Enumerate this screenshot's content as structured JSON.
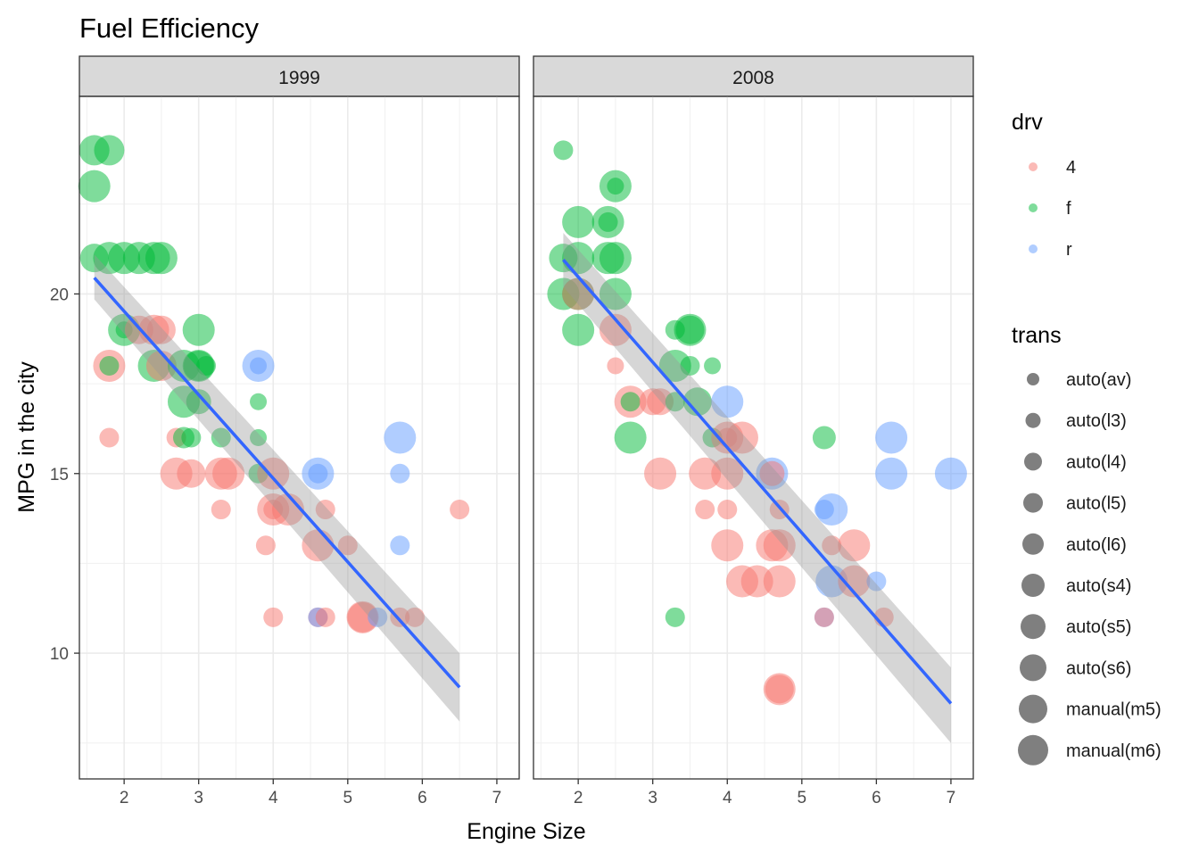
{
  "chart_data": {
    "type": "scatter",
    "title": "Fuel Efficiency",
    "xlabel": "Engine Size",
    "ylabel": "MPG in the city",
    "xlim": [
      1.4,
      7.3
    ],
    "ylim": [
      6.5,
      25.5
    ],
    "x_ticks": [
      2,
      3,
      4,
      5,
      6,
      7
    ],
    "y_ticks": [
      10,
      15,
      20
    ],
    "grid": true,
    "legend_position": "right",
    "facets": [
      "1999",
      "2008"
    ],
    "colors": {
      "4": "#F8766D",
      "f": "#00BA38",
      "r": "#619CFF",
      "smooth": "#3366FF",
      "ribbon": "#999999",
      "strip": "#D9D9D9"
    },
    "legend_color": {
      "title": "drv",
      "labels": [
        "4",
        "f",
        "r"
      ]
    },
    "legend_size": {
      "title": "trans",
      "labels": [
        "auto(av)",
        "auto(l3)",
        "auto(l4)",
        "auto(l5)",
        "auto(l6)",
        "auto(s4)",
        "auto(s5)",
        "auto(s6)",
        "manual(m5)",
        "manual(m6)"
      ]
    },
    "panels": [
      {
        "facet": "1999",
        "smooth": {
          "x": [
            1.6,
            6.5
          ],
          "y": [
            20.45,
            9.05
          ],
          "se_lo": [
            19.85,
            8.1
          ],
          "se_hi": [
            21.1,
            10.0
          ]
        },
        "points": [
          [
            1.8,
            24,
            "f",
            "manual(m5)"
          ],
          [
            1.6,
            24,
            "f",
            "manual(m5)"
          ],
          [
            1.6,
            23,
            "f",
            "manual(m6)"
          ],
          [
            1.6,
            21,
            "f",
            "auto(s6)"
          ],
          [
            1.8,
            21,
            "f",
            "manual(m6)"
          ],
          [
            2.0,
            21,
            "f",
            "manual(m6)"
          ],
          [
            2.2,
            21,
            "f",
            "manual(m6)"
          ],
          [
            2.4,
            21,
            "f",
            "manual(m6)"
          ],
          [
            2.5,
            21,
            "f",
            "manual(m6)"
          ],
          [
            2.0,
            19,
            "f",
            "manual(m6)"
          ],
          [
            2.0,
            19,
            "f",
            "auto(l3)"
          ],
          [
            2.2,
            19,
            "4",
            "auto(s6)"
          ],
          [
            2.4,
            19,
            "4",
            "manual(m5)"
          ],
          [
            2.5,
            19,
            "4",
            "auto(s6)"
          ],
          [
            3.0,
            19,
            "f",
            "manual(m6)"
          ],
          [
            1.8,
            18,
            "4",
            "manual(m6)"
          ],
          [
            1.8,
            18,
            "f",
            "auto(l4)"
          ],
          [
            2.4,
            18,
            "f",
            "manual(m6)"
          ],
          [
            2.5,
            18,
            "4",
            "manual(m5)"
          ],
          [
            2.8,
            18,
            "f",
            "manual(m6)"
          ],
          [
            3.0,
            18,
            "f",
            "manual(m6)"
          ],
          [
            3.0,
            18,
            "f",
            "manual(m5)"
          ],
          [
            3.1,
            18,
            "f",
            "auto(l4)"
          ],
          [
            3.8,
            18,
            "r",
            "manual(m6)"
          ],
          [
            3.8,
            18,
            "r",
            "auto(l3)"
          ],
          [
            2.8,
            17,
            "f",
            "manual(m6)"
          ],
          [
            3.0,
            17,
            "f",
            "auto(s4)"
          ],
          [
            3.8,
            17,
            "f",
            "auto(l3)"
          ],
          [
            1.8,
            16,
            "4",
            "auto(l4)"
          ],
          [
            2.7,
            16,
            "4",
            "auto(l4)"
          ],
          [
            2.8,
            16,
            "f",
            "auto(l5)"
          ],
          [
            2.9,
            16,
            "f",
            "auto(l4)"
          ],
          [
            3.3,
            16,
            "f",
            "auto(l4)"
          ],
          [
            3.8,
            16,
            "f",
            "auto(l3)"
          ],
          [
            5.7,
            16,
            "r",
            "manual(m6)"
          ],
          [
            2.7,
            15,
            "4",
            "manual(m6)"
          ],
          [
            2.9,
            15,
            "4",
            "auto(s6)"
          ],
          [
            3.3,
            15,
            "4",
            "manual(m6)"
          ],
          [
            3.4,
            15,
            "4",
            "manual(m6)"
          ],
          [
            3.8,
            15,
            "f",
            "auto(l4)"
          ],
          [
            4.0,
            15,
            "4",
            "manual(m6)"
          ],
          [
            4.6,
            15,
            "r",
            "manual(m6)"
          ],
          [
            4.6,
            15,
            "r",
            "auto(l4)"
          ],
          [
            5.7,
            15,
            "r",
            "auto(l4)"
          ],
          [
            3.3,
            14,
            "4",
            "auto(l4)"
          ],
          [
            4.0,
            14,
            "4",
            "manual(m6)"
          ],
          [
            4.0,
            14,
            "4",
            "auto(l4)"
          ],
          [
            4.2,
            14,
            "4",
            "manual(m6)"
          ],
          [
            4.7,
            14,
            "4",
            "auto(l4)"
          ],
          [
            6.5,
            14,
            "4",
            "auto(l4)"
          ],
          [
            3.9,
            13,
            "4",
            "auto(l4)"
          ],
          [
            4.6,
            13,
            "4",
            "manual(m6)"
          ],
          [
            5.0,
            13,
            "4",
            "auto(l4)"
          ],
          [
            5.7,
            13,
            "r",
            "auto(l4)"
          ],
          [
            4.0,
            11,
            "4",
            "auto(l4)"
          ],
          [
            4.6,
            11,
            "4",
            "auto(l4)"
          ],
          [
            4.6,
            11,
            "r",
            "auto(l4)"
          ],
          [
            4.7,
            11,
            "4",
            "auto(l4)"
          ],
          [
            5.2,
            11,
            "4",
            "manual(m6)"
          ],
          [
            5.2,
            11,
            "4",
            "manual(m5)"
          ],
          [
            5.4,
            11,
            "r",
            "auto(l4)"
          ],
          [
            5.7,
            11,
            "4",
            "auto(l4)"
          ],
          [
            5.9,
            11,
            "4",
            "auto(l4)"
          ]
        ]
      },
      {
        "facet": "2008",
        "smooth": {
          "x": [
            1.8,
            7.0
          ],
          "y": [
            20.95,
            8.6
          ],
          "se_lo": [
            20.2,
            7.5
          ],
          "se_hi": [
            21.7,
            9.6
          ]
        },
        "points": [
          [
            1.8,
            24,
            "f",
            "auto(l4)"
          ],
          [
            2.5,
            23,
            "f",
            "manual(m6)"
          ],
          [
            2.5,
            23,
            "f",
            "auto(l3)"
          ],
          [
            2.0,
            22,
            "f",
            "manual(m6)"
          ],
          [
            2.4,
            22,
            "f",
            "manual(m6)"
          ],
          [
            2.4,
            22,
            "f",
            "auto(l4)"
          ],
          [
            1.8,
            21,
            "f",
            "auto(s6)"
          ],
          [
            2.0,
            21,
            "f",
            "manual(m6)"
          ],
          [
            2.4,
            21,
            "f",
            "manual(m6)"
          ],
          [
            2.5,
            21,
            "f",
            "manual(m6)"
          ],
          [
            1.8,
            20,
            "f",
            "manual(m6)"
          ],
          [
            2.0,
            20,
            "f",
            "manual(m6)"
          ],
          [
            2.0,
            20,
            "4",
            "manual(m6)"
          ],
          [
            2.5,
            20,
            "f",
            "manual(m6)"
          ],
          [
            2.0,
            19,
            "f",
            "manual(m6)"
          ],
          [
            2.5,
            19,
            "4",
            "manual(m6)"
          ],
          [
            3.3,
            19,
            "f",
            "auto(l4)"
          ],
          [
            3.5,
            19,
            "f",
            "manual(m6)"
          ],
          [
            3.5,
            19,
            "f",
            "auto(s6)"
          ],
          [
            2.5,
            18,
            "4",
            "auto(l3)"
          ],
          [
            3.3,
            18,
            "f",
            "manual(m6)"
          ],
          [
            3.5,
            18,
            "f",
            "auto(l4)"
          ],
          [
            3.8,
            18,
            "f",
            "auto(l3)"
          ],
          [
            2.7,
            17,
            "4",
            "manual(m6)"
          ],
          [
            2.7,
            17,
            "f",
            "auto(l4)"
          ],
          [
            3.0,
            17,
            "4",
            "auto(s5)"
          ],
          [
            3.1,
            17,
            "4",
            "auto(s5)"
          ],
          [
            3.3,
            17,
            "f",
            "auto(l4)"
          ],
          [
            3.6,
            17,
            "f",
            "auto(s6)"
          ],
          [
            4.0,
            17,
            "r",
            "manual(m6)"
          ],
          [
            2.7,
            16,
            "f",
            "manual(m6)"
          ],
          [
            3.8,
            16,
            "f",
            "auto(l4)"
          ],
          [
            4.0,
            16,
            "4",
            "manual(m6)"
          ],
          [
            4.0,
            16,
            "4",
            "auto(l4)"
          ],
          [
            4.2,
            16,
            "4",
            "manual(m6)"
          ],
          [
            5.3,
            16,
            "f",
            "auto(l6)"
          ],
          [
            6.2,
            16,
            "r",
            "manual(m6)"
          ],
          [
            3.1,
            15,
            "4",
            "manual(m6)"
          ],
          [
            3.7,
            15,
            "4",
            "manual(m6)"
          ],
          [
            4.0,
            15,
            "4",
            "manual(m6)"
          ],
          [
            4.6,
            15,
            "r",
            "manual(m6)"
          ],
          [
            4.6,
            15,
            "4",
            "auto(s4)"
          ],
          [
            6.2,
            15,
            "r",
            "manual(m6)"
          ],
          [
            7.0,
            15,
            "r",
            "manual(m6)"
          ],
          [
            3.7,
            14,
            "4",
            "auto(l4)"
          ],
          [
            4.0,
            14,
            "4",
            "auto(l4)"
          ],
          [
            4.7,
            14,
            "4",
            "auto(l4)"
          ],
          [
            5.3,
            14,
            "r",
            "auto(l4)"
          ],
          [
            5.4,
            14,
            "r",
            "manual(m6)"
          ],
          [
            4.0,
            13,
            "4",
            "manual(m6)"
          ],
          [
            4.6,
            13,
            "4",
            "manual(m6)"
          ],
          [
            4.7,
            13,
            "4",
            "manual(m6)"
          ],
          [
            5.4,
            13,
            "4",
            "auto(l4)"
          ],
          [
            5.7,
            13,
            "4",
            "manual(m6)"
          ],
          [
            4.2,
            12,
            "4",
            "manual(m6)"
          ],
          [
            4.4,
            12,
            "4",
            "manual(m6)"
          ],
          [
            4.7,
            12,
            "4",
            "manual(m6)"
          ],
          [
            5.4,
            12,
            "r",
            "manual(m6)"
          ],
          [
            5.7,
            12,
            "4",
            "manual(m6)"
          ],
          [
            6.0,
            12,
            "r",
            "auto(l4)"
          ],
          [
            3.3,
            11,
            "f",
            "auto(l4)"
          ],
          [
            5.3,
            11,
            "r",
            "auto(l4)"
          ],
          [
            5.3,
            11,
            "4",
            "auto(l4)"
          ],
          [
            6.1,
            11,
            "4",
            "auto(l4)"
          ],
          [
            4.7,
            9,
            "4",
            "manual(m6)"
          ],
          [
            4.7,
            9,
            "4",
            "auto(s6)"
          ]
        ]
      }
    ]
  }
}
